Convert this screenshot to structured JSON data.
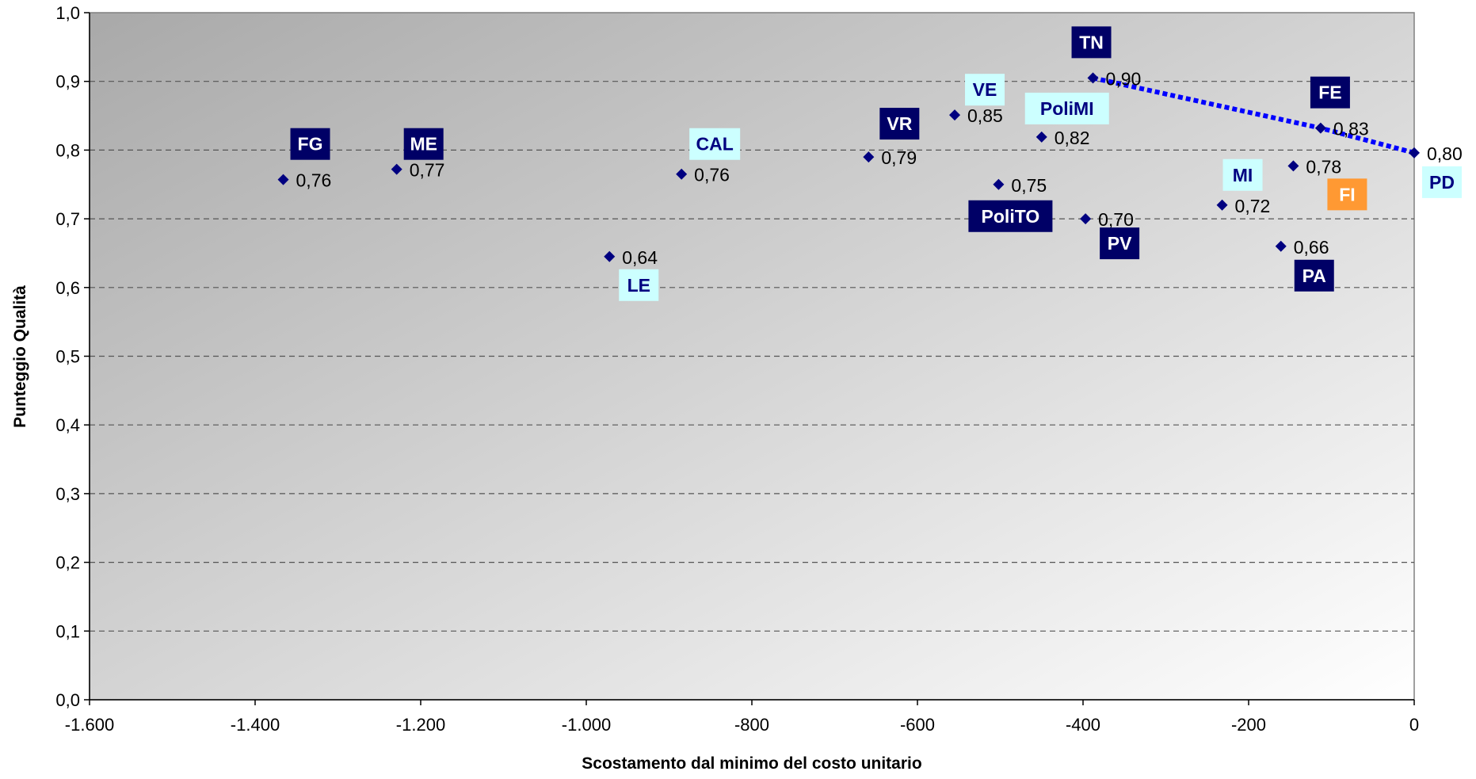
{
  "chart_data": {
    "type": "scatter",
    "title": "",
    "xlabel": "Scostamento dal minimo del costo unitario",
    "ylabel": "Punteggio  Qualità",
    "xlim": [
      -1600,
      0
    ],
    "ylim": [
      0,
      1.0
    ],
    "x_ticks": [
      -1600,
      -1400,
      -1200,
      -1000,
      -800,
      -600,
      -400,
      -200,
      0
    ],
    "x_tick_labels": [
      "-1.600",
      "-1.400",
      "-1.200",
      "-1.000",
      "-800",
      "-600",
      "-400",
      "-200",
      "0"
    ],
    "y_ticks": [
      0,
      0.1,
      0.2,
      0.3,
      0.4,
      0.5,
      0.6,
      0.7,
      0.8,
      0.9,
      1.0
    ],
    "y_tick_labels": [
      "0,0",
      "0,1",
      "0,2",
      "0,3",
      "0,4",
      "0,5",
      "0,6",
      "0,7",
      "0,8",
      "0,9",
      "1,0"
    ],
    "grid": "horizontal dashed",
    "marker_color": "#000080",
    "frontier_color": "#0000ff",
    "points": [
      {
        "name": "FG",
        "x": -1366,
        "y": 0.757,
        "label": "0,76",
        "tag_style": "dark"
      },
      {
        "name": "ME",
        "x": -1229,
        "y": 0.772,
        "label": "0,77",
        "tag_style": "dark"
      },
      {
        "name": "LE",
        "x": -972,
        "y": 0.645,
        "label": "0,64",
        "tag_style": "light"
      },
      {
        "name": "CAL",
        "x": -885,
        "y": 0.765,
        "label": "0,76",
        "tag_style": "light"
      },
      {
        "name": "VR",
        "x": -659,
        "y": 0.79,
        "label": "0,79",
        "tag_style": "dark"
      },
      {
        "name": "VE",
        "x": -555,
        "y": 0.851,
        "label": "0,85",
        "tag_style": "light"
      },
      {
        "name": "PoliTO",
        "x": -502,
        "y": 0.75,
        "label": "0,75",
        "tag_style": "dark"
      },
      {
        "name": "PoliMI",
        "x": -450,
        "y": 0.819,
        "label": "0,82",
        "tag_style": "light"
      },
      {
        "name": "PV",
        "x": -397,
        "y": 0.7,
        "label": "0,70",
        "tag_style": "dark"
      },
      {
        "name": "TN",
        "x": -388,
        "y": 0.905,
        "label": "0,90",
        "tag_style": "dark"
      },
      {
        "name": "MI",
        "x": -232,
        "y": 0.72,
        "label": "0,72",
        "tag_style": "light"
      },
      {
        "name": "PA",
        "x": -161,
        "y": 0.66,
        "label": "0,66",
        "tag_style": "dark"
      },
      {
        "name": "FI",
        "x": -146,
        "y": 0.777,
        "label": "0,78",
        "tag_style": "orange"
      },
      {
        "name": "FE",
        "x": -113,
        "y": 0.832,
        "label": "0,83",
        "tag_style": "dark"
      },
      {
        "name": "PD",
        "x": 0,
        "y": 0.796,
        "label": "0,80",
        "tag_style": "light"
      }
    ],
    "frontier": [
      {
        "x": -388,
        "y": 0.905
      },
      {
        "x": -113,
        "y": 0.832
      },
      {
        "x": 0,
        "y": 0.796
      }
    ],
    "tag_colors": {
      "dark": {
        "bg": "#000066",
        "fg": "#ffffff"
      },
      "light": {
        "bg": "#ccffff",
        "fg": "#000080"
      },
      "orange": {
        "bg": "#ff9933",
        "fg": "#ffffff"
      }
    }
  }
}
